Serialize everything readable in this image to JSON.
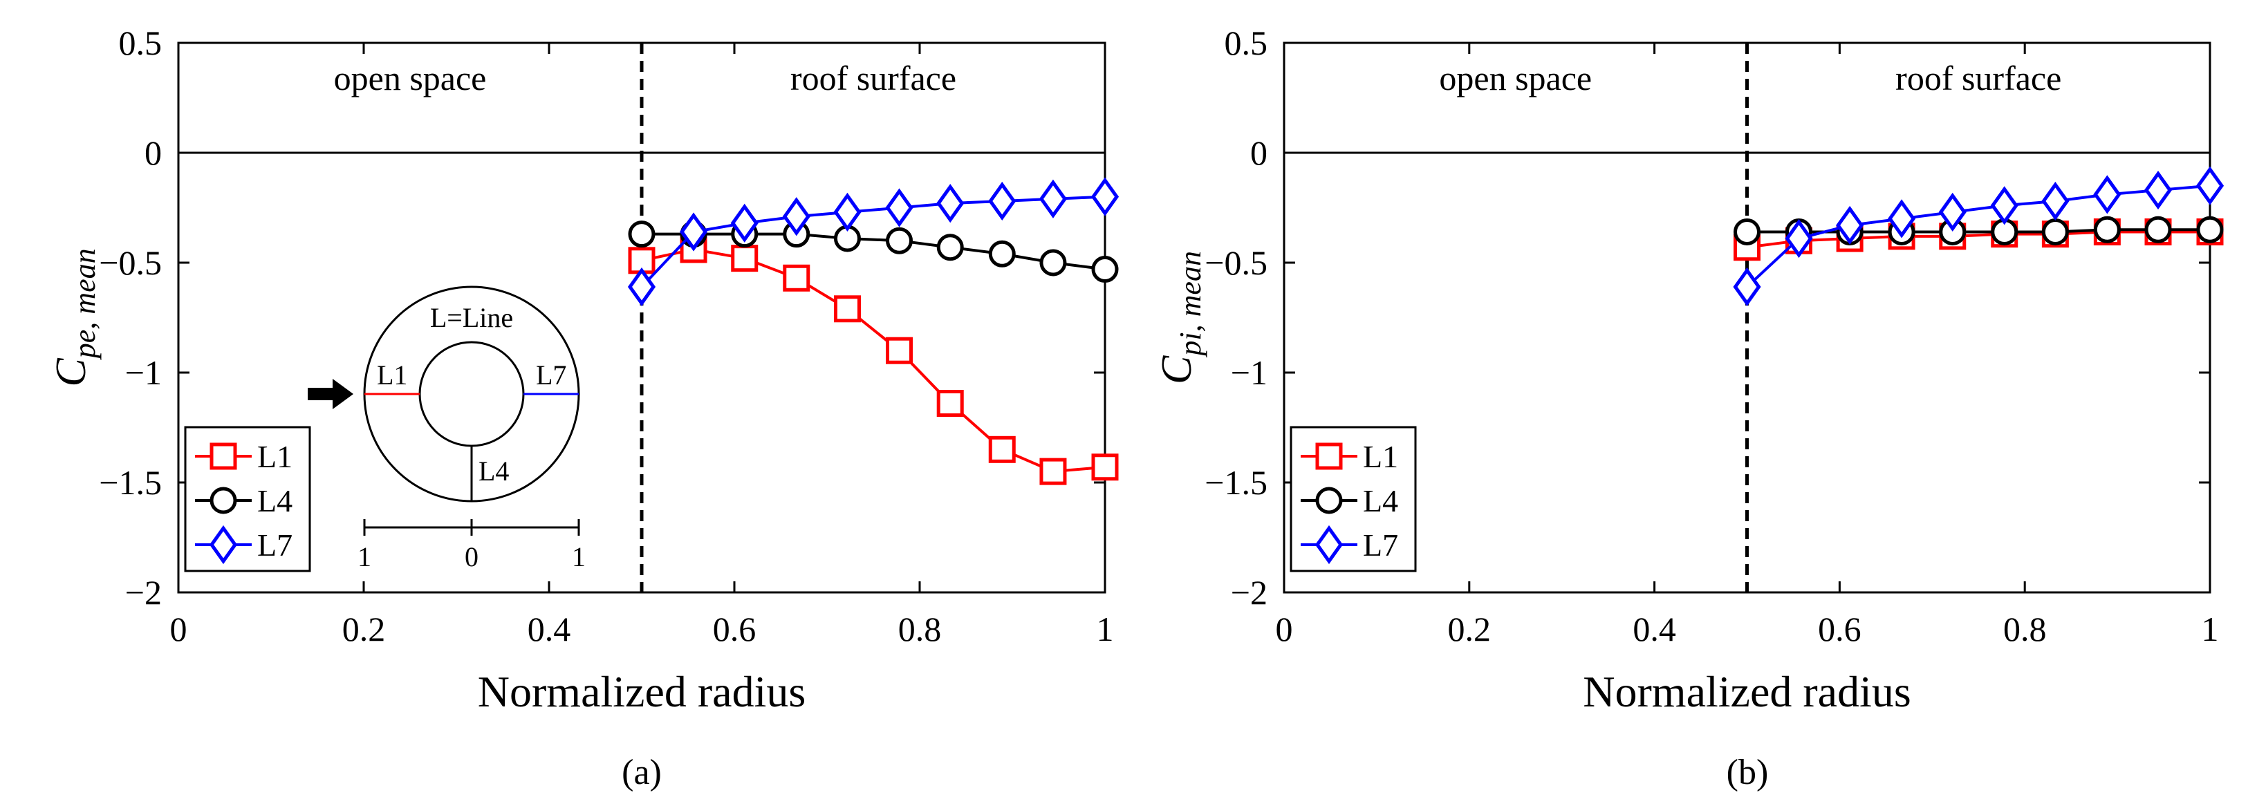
{
  "figure": {
    "panels": [
      {
        "id": "a",
        "caption": "(a)",
        "region_left": "open space",
        "region_right": "roof surface",
        "inset": {
          "title": "L=Line",
          "labels": [
            "L1",
            "L4",
            "L7"
          ],
          "scale_ticks": [
            "1",
            "0",
            "1"
          ]
        }
      },
      {
        "id": "b",
        "caption": "(b)",
        "region_left": "open space",
        "region_right": "roof surface"
      }
    ]
  },
  "chart_data": [
    {
      "type": "line",
      "title": "",
      "xlabel": "Normalized radius",
      "ylabel_main": "C",
      "ylabel_sub": "pe, mean",
      "xlim": [
        0,
        1
      ],
      "ylim": [
        -2,
        0.5
      ],
      "xticks": [
        0,
        0.2,
        0.4,
        0.6,
        0.8,
        1
      ],
      "xtick_labels": [
        "0",
        "0.2",
        "0.4",
        "0.6",
        "0.8",
        "1"
      ],
      "yticks": [
        0.5,
        0,
        -0.5,
        -1,
        -1.5,
        -2
      ],
      "ytick_labels": [
        "0.5",
        "0",
        "−0.5",
        "−1",
        "−1.5",
        "−2"
      ],
      "divider_x": 0.5,
      "zero_line": 0,
      "legend": "lower-left",
      "x": [
        0.5,
        0.556,
        0.611,
        0.667,
        0.722,
        0.778,
        0.833,
        0.889,
        0.944,
        1.0
      ],
      "series": [
        {
          "name": "L1",
          "color": "#ff0000",
          "marker": "square",
          "values": [
            -0.49,
            -0.44,
            -0.48,
            -0.57,
            -0.71,
            -0.9,
            -1.14,
            -1.35,
            -1.45,
            -1.43
          ]
        },
        {
          "name": "L4",
          "color": "#000000",
          "marker": "circle",
          "values": [
            -0.37,
            -0.37,
            -0.37,
            -0.37,
            -0.39,
            -0.4,
            -0.43,
            -0.46,
            -0.5,
            -0.53
          ]
        },
        {
          "name": "L7",
          "color": "#0000ff",
          "marker": "diamond",
          "values": [
            -0.61,
            -0.36,
            -0.32,
            -0.29,
            -0.27,
            -0.25,
            -0.23,
            -0.22,
            -0.21,
            -0.2
          ]
        }
      ]
    },
    {
      "type": "line",
      "title": "",
      "xlabel": "Normalized radius",
      "ylabel_main": "C",
      "ylabel_sub": "pi, mean",
      "xlim": [
        0,
        1
      ],
      "ylim": [
        -2,
        0.5
      ],
      "xticks": [
        0,
        0.2,
        0.4,
        0.6,
        0.8,
        1
      ],
      "xtick_labels": [
        "0",
        "0.2",
        "0.4",
        "0.6",
        "0.8",
        "1"
      ],
      "yticks": [
        0.5,
        0,
        -0.5,
        -1,
        -1.5,
        -2
      ],
      "ytick_labels": [
        "0.5",
        "0",
        "−0.5",
        "−1",
        "−1.5",
        "−2"
      ],
      "divider_x": 0.5,
      "zero_line": 0,
      "legend": "lower-left",
      "x": [
        0.5,
        0.556,
        0.611,
        0.667,
        0.722,
        0.778,
        0.833,
        0.889,
        0.944,
        1.0
      ],
      "series": [
        {
          "name": "L1",
          "color": "#ff0000",
          "marker": "square",
          "values": [
            -0.43,
            -0.4,
            -0.39,
            -0.38,
            -0.38,
            -0.37,
            -0.37,
            -0.36,
            -0.36,
            -0.36
          ]
        },
        {
          "name": "L4",
          "color": "#000000",
          "marker": "circle",
          "values": [
            -0.36,
            -0.36,
            -0.36,
            -0.36,
            -0.36,
            -0.36,
            -0.36,
            -0.35,
            -0.35,
            -0.35
          ]
        },
        {
          "name": "L7",
          "color": "#0000ff",
          "marker": "diamond",
          "values": [
            -0.61,
            -0.39,
            -0.33,
            -0.3,
            -0.27,
            -0.24,
            -0.22,
            -0.19,
            -0.17,
            -0.15
          ]
        }
      ]
    }
  ]
}
